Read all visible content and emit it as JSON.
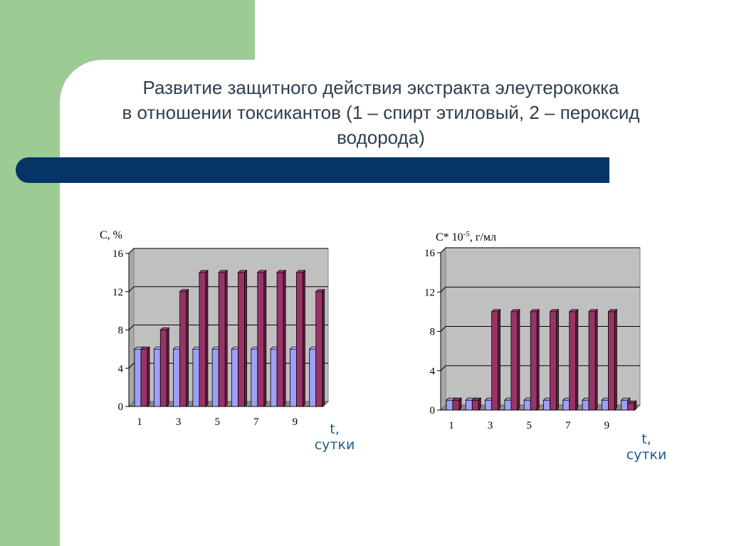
{
  "slide": {
    "title_lines": [
      "Развитие защитного действия экстракта элеутерококка",
      "в отношении токсикантов (1 – спирт этиловый, 2 – пероксид",
      "водорода)"
    ]
  },
  "colors": {
    "green": "#9ccc94",
    "title_bar": "#053566",
    "title_text": "#2e3f52",
    "series_light": "#9f9ff5",
    "series_dark": "#993366",
    "plot_bg": "#c0c0c0",
    "t_label": "#1f5a8a"
  },
  "chart_data": [
    {
      "type": "bar",
      "ylabel": "C, %",
      "x_unit": [
        "t,",
        "сутки"
      ],
      "ylim": [
        0,
        16
      ],
      "yticks": [
        0,
        4,
        8,
        12,
        16
      ],
      "xtick_labels": [
        "1",
        "3",
        "5",
        "7",
        "9"
      ],
      "categories": [
        "1",
        "2",
        "3",
        "4",
        "5",
        "6",
        "7",
        "8",
        "9",
        "10"
      ],
      "grid": true,
      "series": [
        {
          "values": [
            6,
            6,
            6,
            6,
            6,
            6,
            6,
            6,
            6,
            6
          ]
        },
        {
          "values": [
            6,
            8,
            12,
            14,
            14,
            14,
            14,
            14,
            14,
            12
          ]
        }
      ]
    },
    {
      "type": "bar",
      "ylabel": "C* 10",
      "ylabel_sup": "-5",
      "ylabel_suffix": ", г/мл",
      "x_unit": [
        "t,",
        "сутки"
      ],
      "ylim": [
        0,
        16
      ],
      "yticks": [
        0,
        4,
        8,
        12,
        16
      ],
      "xtick_labels": [
        "1",
        "3",
        "5",
        "7",
        "9"
      ],
      "categories": [
        "1",
        "2",
        "3",
        "4",
        "5",
        "6",
        "7",
        "8",
        "9",
        "10"
      ],
      "grid": true,
      "series": [
        {
          "values": [
            1,
            1,
            1,
            1,
            1,
            1,
            1,
            1,
            1,
            1
          ]
        },
        {
          "values": [
            1,
            1,
            10,
            10,
            10,
            10,
            10,
            10,
            10,
            0.7
          ]
        }
      ]
    }
  ]
}
